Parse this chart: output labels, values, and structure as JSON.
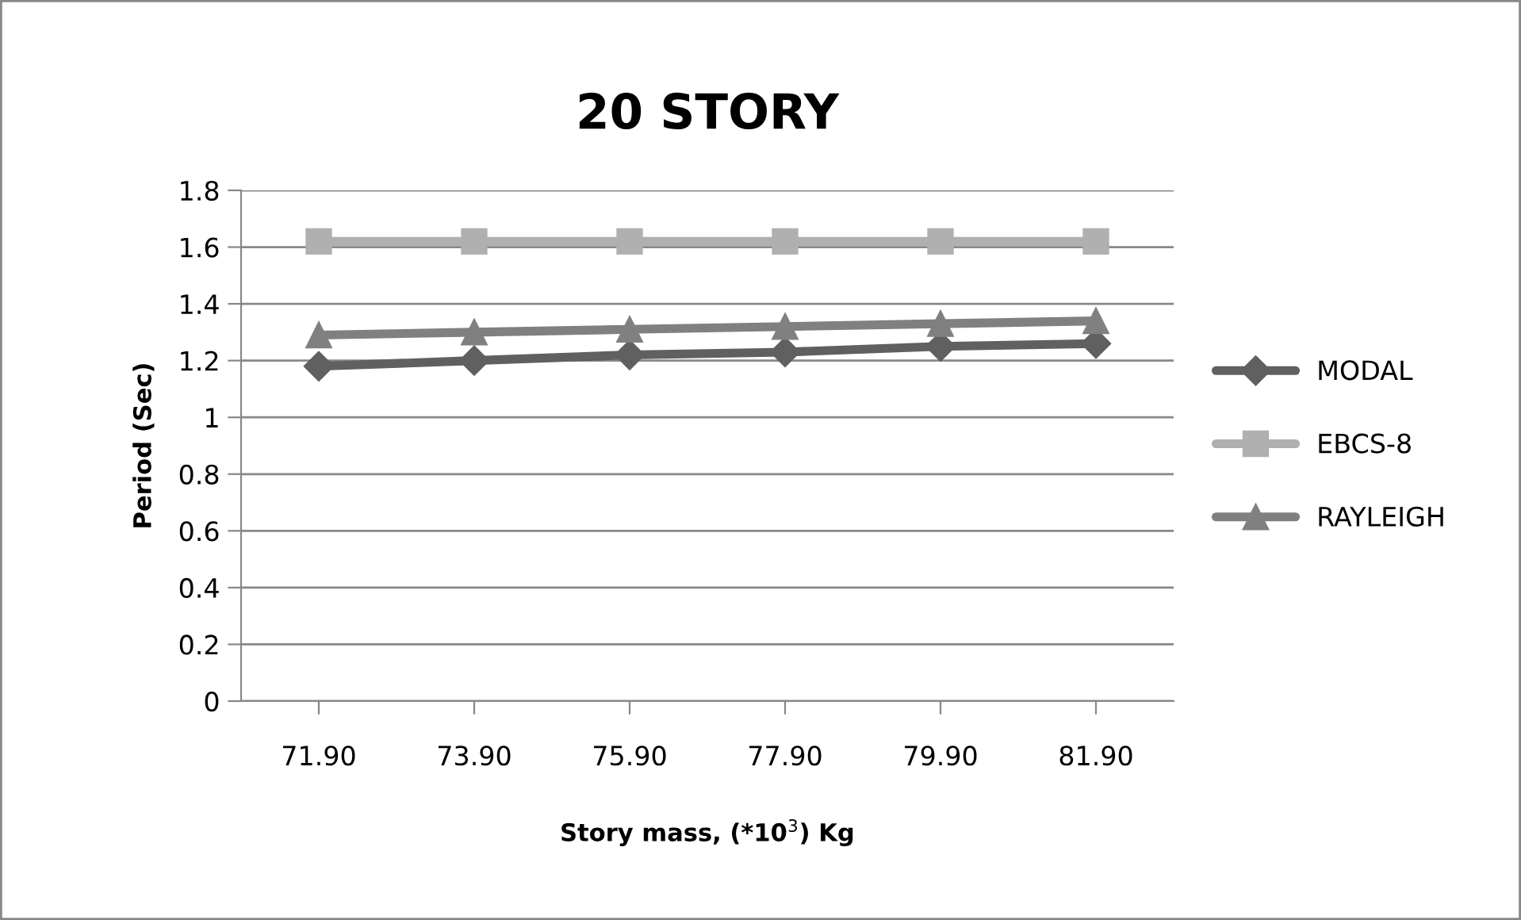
{
  "chart_data": {
    "type": "line",
    "title": "20 STORY",
    "xlabel": "Story mass, (*10$^{3}$) Kg",
    "ylabel": "Period (Sec)",
    "categories": [
      "71.90",
      "73.90",
      "75.90",
      "77.90",
      "79.90",
      "81.90"
    ],
    "series": [
      {
        "name": "MODAL",
        "color": "#606060",
        "marker": "diamond",
        "values": [
          1.18,
          1.2,
          1.22,
          1.23,
          1.25,
          1.26
        ]
      },
      {
        "name": "EBCS-8",
        "color": "#b0b0b0",
        "marker": "square",
        "values": [
          1.62,
          1.62,
          1.62,
          1.62,
          1.62,
          1.62
        ]
      },
      {
        "name": "RAYLEIGH",
        "color": "#808080",
        "marker": "triangle",
        "values": [
          1.29,
          1.3,
          1.31,
          1.32,
          1.33,
          1.34
        ]
      }
    ],
    "ylim": [
      0,
      1.8
    ],
    "yticks": [
      0,
      0.2,
      0.4,
      0.6,
      0.8,
      1,
      1.2,
      1.4,
      1.6,
      1.8
    ],
    "grid": "y",
    "legend": "right",
    "line_style": "solid"
  }
}
